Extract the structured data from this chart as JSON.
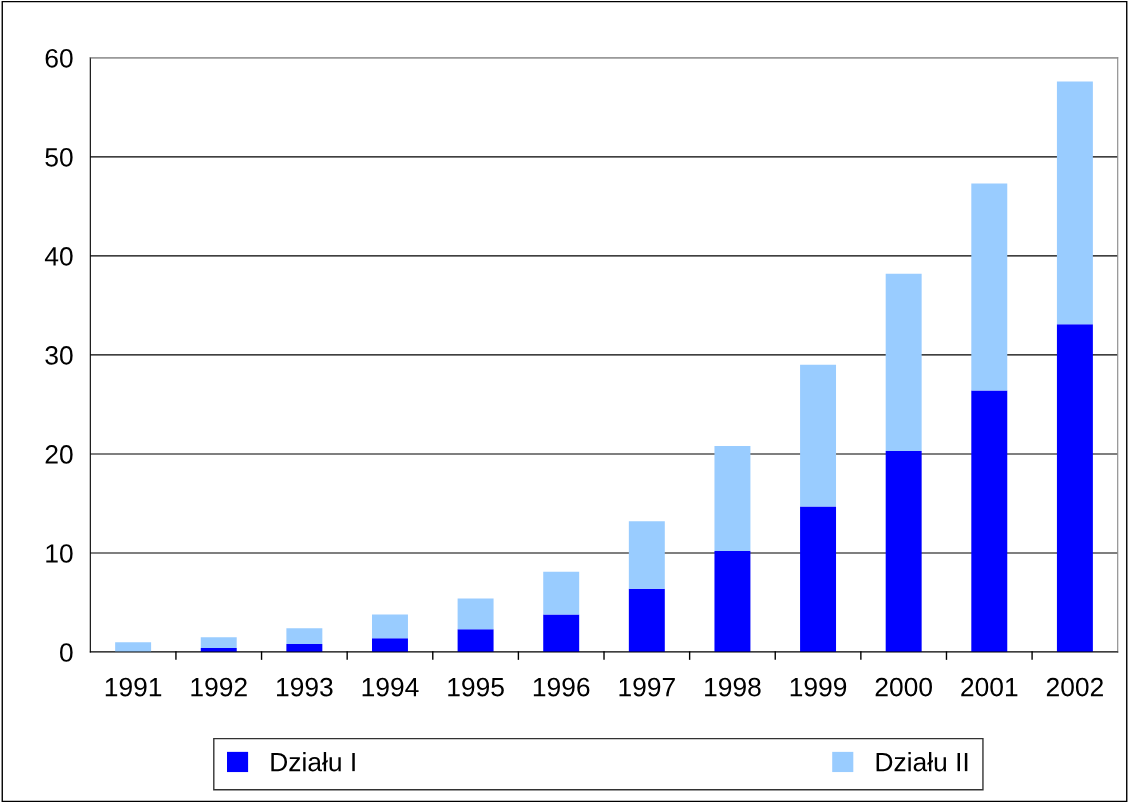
{
  "chart_data": {
    "type": "bar",
    "stacked": true,
    "categories": [
      "1991",
      "1992",
      "1993",
      "1994",
      "1995",
      "1996",
      "1997",
      "1998",
      "1999",
      "2000",
      "2001",
      "2002"
    ],
    "series": [
      {
        "name": "Działu I",
        "color": "#0000ff",
        "values": [
          0,
          0.4,
          0.8,
          1.4,
          2.3,
          3.8,
          6.4,
          10.2,
          14.7,
          20.3,
          26.4,
          33.1
        ]
      },
      {
        "name": "Działu II",
        "color": "#99ccff",
        "values": [
          1.0,
          1.1,
          1.6,
          2.4,
          3.1,
          4.3,
          6.8,
          10.6,
          14.3,
          17.9,
          20.9,
          24.5
        ]
      }
    ],
    "ylim": [
      0,
      60
    ],
    "yticks": [
      0,
      10,
      20,
      30,
      40,
      50,
      60
    ],
    "grid": "y",
    "legend": "bottom"
  }
}
